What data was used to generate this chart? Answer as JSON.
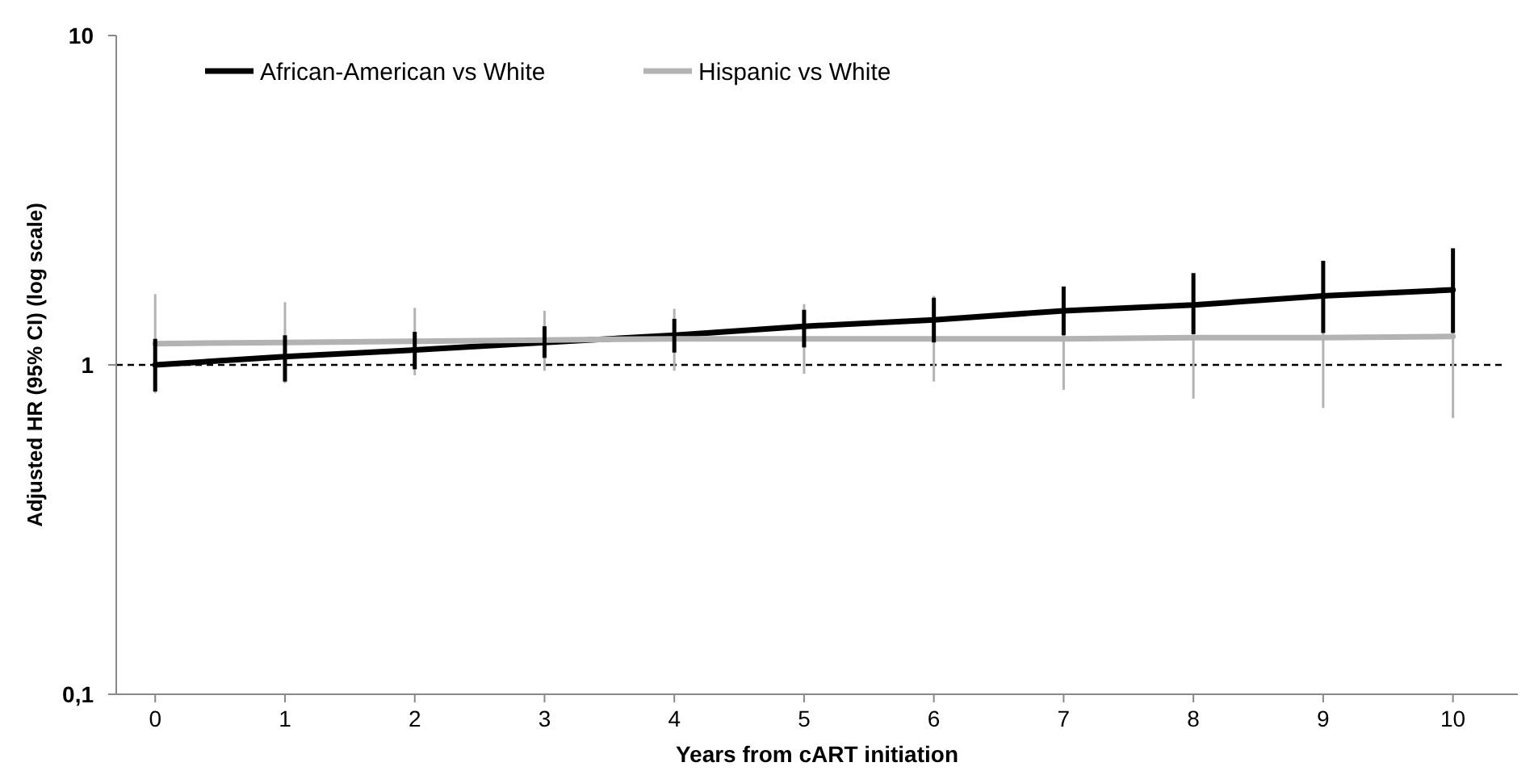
{
  "chart_data": {
    "type": "line",
    "xlabel": "Years from cART initiation",
    "ylabel": "Adjusted HR (95% CI) (log scale)",
    "x": [
      0,
      1,
      2,
      3,
      4,
      5,
      6,
      7,
      8,
      9,
      10
    ],
    "series": [
      {
        "name": "African-American vs White",
        "color": "#000000",
        "values": [
          1.0,
          1.06,
          1.11,
          1.17,
          1.23,
          1.31,
          1.37,
          1.46,
          1.52,
          1.62,
          1.69
        ],
        "errors": [
          [
            0.83,
            1.2
          ],
          [
            0.89,
            1.23
          ],
          [
            0.97,
            1.26
          ],
          [
            1.05,
            1.31
          ],
          [
            1.09,
            1.38
          ],
          [
            1.13,
            1.47
          ],
          [
            1.17,
            1.6
          ],
          [
            1.23,
            1.73
          ],
          [
            1.24,
            1.9
          ],
          [
            1.25,
            2.07
          ],
          [
            1.25,
            2.26
          ]
        ]
      },
      {
        "name": "Hispanic vs White",
        "color": "#b3b3b3",
        "values": [
          1.16,
          1.17,
          1.18,
          1.19,
          1.2,
          1.2,
          1.2,
          1.2,
          1.21,
          1.21,
          1.22
        ],
        "errors": [
          [
            0.82,
            1.64
          ],
          [
            0.88,
            1.55
          ],
          [
            0.93,
            1.49
          ],
          [
            0.96,
            1.46
          ],
          [
            0.96,
            1.48
          ],
          [
            0.94,
            1.53
          ],
          [
            0.89,
            1.62
          ],
          [
            0.84,
            1.73
          ],
          [
            0.79,
            1.88
          ],
          [
            0.74,
            2.04
          ],
          [
            0.69,
            2.21
          ]
        ]
      }
    ],
    "log": "y",
    "xlim": [
      -0.3,
      10.5
    ],
    "xticks": [
      0,
      1,
      2,
      3,
      4,
      5,
      6,
      7,
      8,
      9,
      10
    ],
    "ylim": [
      0.1,
      10
    ],
    "yticks": [
      {
        "value": 0.1,
        "label": "0,1"
      },
      1,
      10
    ],
    "ref_lines": [
      {
        "axis": "y",
        "value": 1,
        "line_style": "dashed",
        "color": "#000000"
      }
    ],
    "legend": "top left",
    "grid": false,
    "marker": "none",
    "line_style": "solid"
  }
}
